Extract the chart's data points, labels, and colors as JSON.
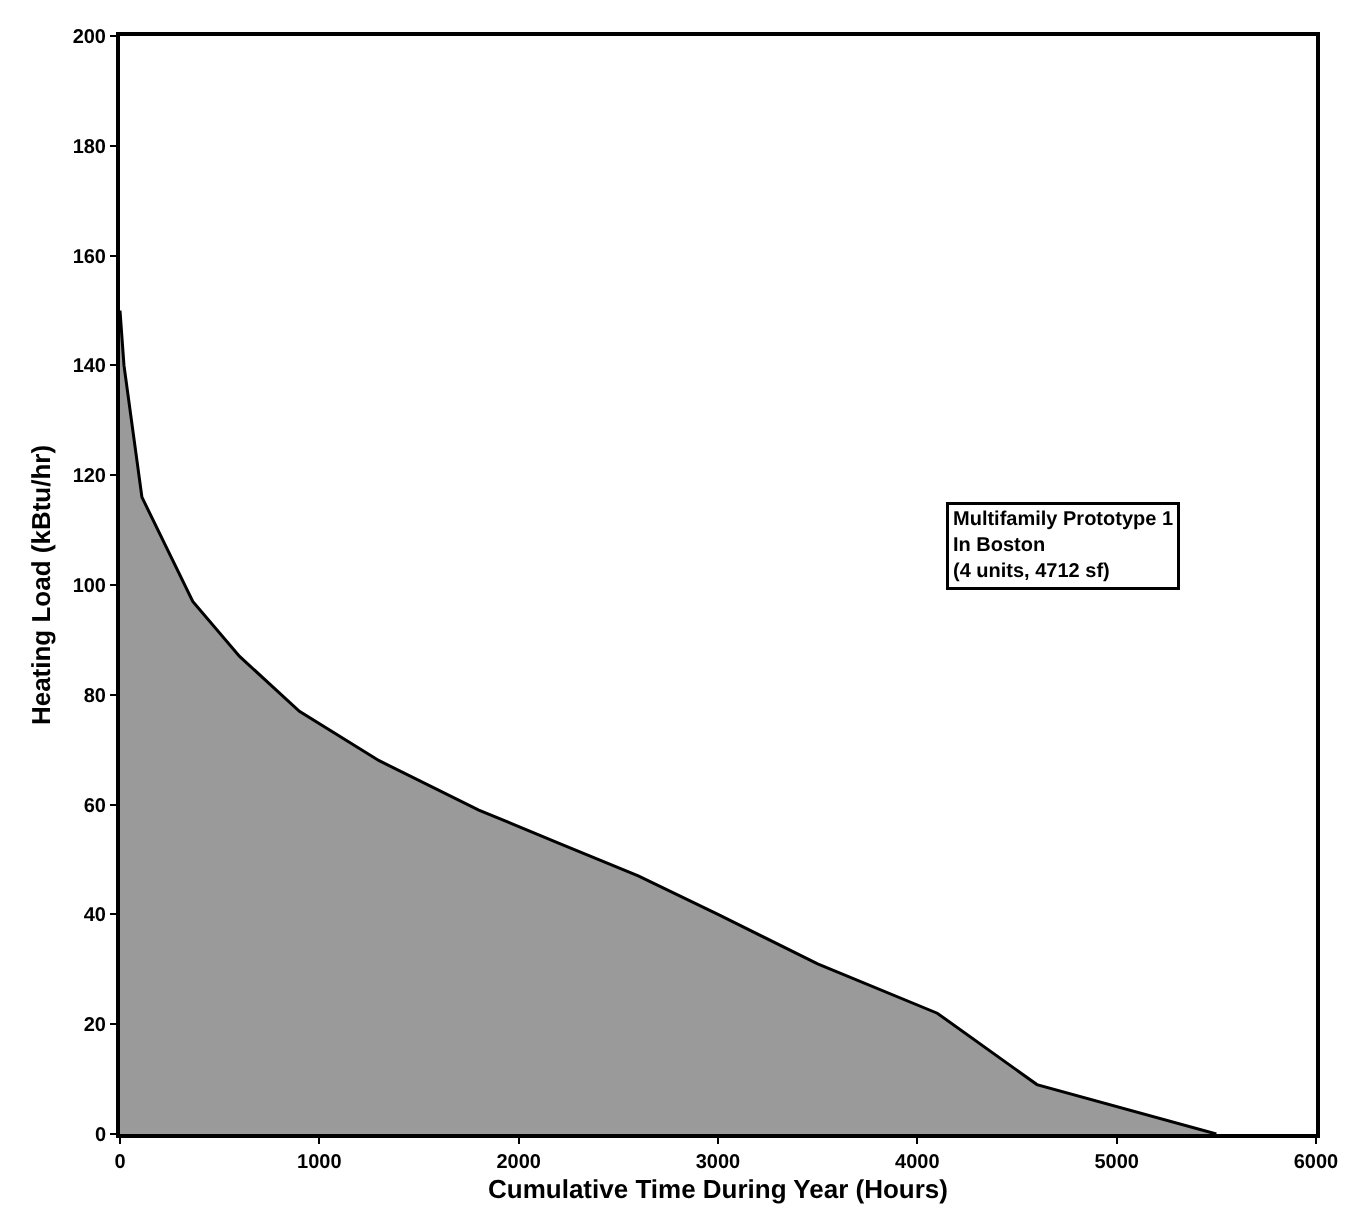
{
  "chart_data": {
    "type": "area",
    "xlabel": "Cumulative Time During Year (Hours)",
    "ylabel": "Heating Load (kBtu/hr)",
    "annotations": [
      "Multifamily Prototype 1\nIn Boston\n(4 units, 4712 sf)"
    ],
    "x": [
      0,
      20,
      110,
      365,
      600,
      900,
      1300,
      1800,
      2200,
      2600,
      3000,
      3500,
      4100,
      4600,
      5500
    ],
    "series": [
      {
        "color": "#9a9a9a",
        "values": [
          150,
          140,
          116,
          97,
          87,
          77,
          68,
          59,
          53,
          47,
          40,
          31,
          22,
          9,
          0
        ]
      }
    ],
    "xlim": [
      0,
      6000
    ],
    "xticks": [
      0,
      1000,
      2000,
      3000,
      4000,
      5000,
      6000
    ],
    "ylim": [
      0,
      200
    ],
    "yticks": [
      0,
      20,
      40,
      60,
      80,
      100,
      120,
      140,
      160,
      180,
      200
    ],
    "grid": false
  }
}
